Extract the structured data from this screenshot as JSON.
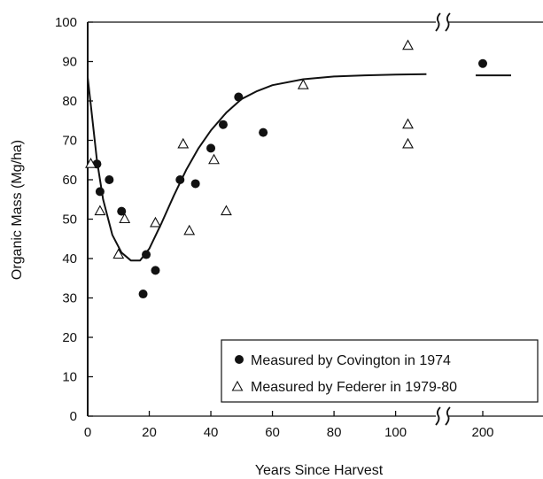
{
  "chart_data": {
    "type": "scatter",
    "xlabel": "Years Since Harvest",
    "ylabel": "Organic Mass (Mg/ha)",
    "xlim": [
      0,
      110
    ],
    "ylim": [
      0,
      100
    ],
    "x_break": {
      "after": 110,
      "resumes_at": 200
    },
    "x_ticks": [
      "0",
      "20",
      "40",
      "60",
      "80",
      "100",
      "200"
    ],
    "y_ticks": [
      "0",
      "10",
      "20",
      "30",
      "40",
      "50",
      "60",
      "70",
      "80",
      "90",
      "100"
    ],
    "grid": false,
    "legend_position": "bottom-right",
    "series": [
      {
        "name": "Measured by Covington in 1974",
        "marker": "filled-circle",
        "points": [
          [
            3,
            64
          ],
          [
            4,
            57
          ],
          [
            7,
            60
          ],
          [
            11,
            52
          ],
          [
            18,
            31
          ],
          [
            19,
            41
          ],
          [
            22,
            37
          ],
          [
            30,
            60
          ],
          [
            35,
            59
          ],
          [
            40,
            68
          ],
          [
            44,
            74
          ],
          [
            49,
            81
          ],
          [
            57,
            72
          ],
          [
            200,
            89.5
          ]
        ]
      },
      {
        "name": "Measured by Federer in 1979-80",
        "marker": "open-triangle",
        "points": [
          [
            1,
            64
          ],
          [
            4,
            52
          ],
          [
            10,
            41
          ],
          [
            12,
            50
          ],
          [
            22,
            49
          ],
          [
            31,
            69
          ],
          [
            33,
            47
          ],
          [
            41,
            65
          ],
          [
            45,
            52
          ],
          [
            70,
            84
          ],
          [
            104,
            94
          ],
          [
            104,
            74
          ],
          [
            104,
            69
          ]
        ]
      }
    ],
    "fitted_curve": {
      "points": [
        [
          0,
          86
        ],
        [
          1,
          79
        ],
        [
          3,
          65
        ],
        [
          5,
          55
        ],
        [
          8,
          46
        ],
        [
          11,
          41.5
        ],
        [
          14,
          39.5
        ],
        [
          17,
          39.5
        ],
        [
          20,
          42.5
        ],
        [
          24,
          49
        ],
        [
          28,
          56
        ],
        [
          32,
          62.5
        ],
        [
          36,
          68
        ],
        [
          40,
          72.5
        ],
        [
          45,
          77
        ],
        [
          50,
          80.5
        ],
        [
          55,
          82.5
        ],
        [
          60,
          84
        ],
        [
          70,
          85.5
        ],
        [
          80,
          86.2
        ],
        [
          90,
          86.5
        ],
        [
          100,
          86.7
        ],
        [
          110,
          86.8
        ]
      ],
      "asymptote_segment": {
        "x_range": [
          195,
          220
        ],
        "y": 86.5
      }
    }
  }
}
